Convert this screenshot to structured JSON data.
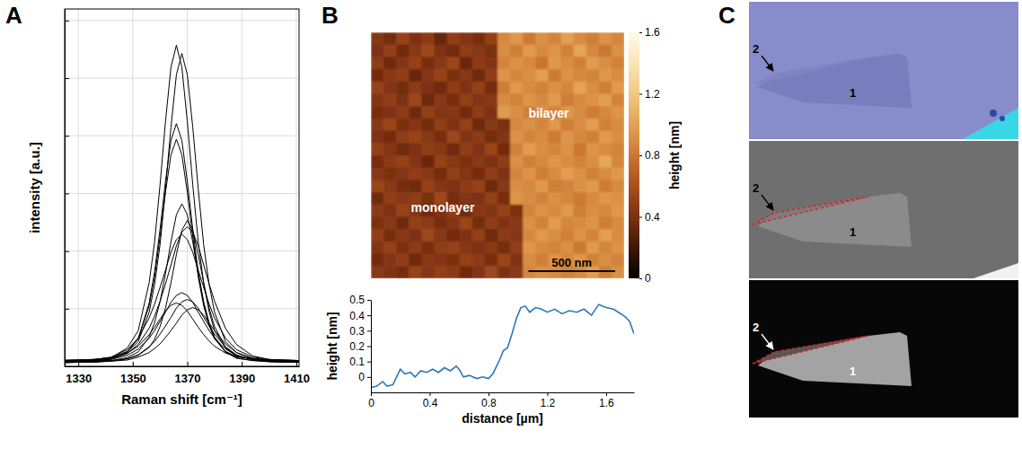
{
  "panel_labels": [
    "A",
    "B",
    "C"
  ],
  "chart_data": [
    {
      "type": "line",
      "xlabel": "Raman shift [cm⁻¹]",
      "ylabel": "intensity [a.u.]",
      "x": [
        1325,
        1330,
        1336,
        1342,
        1348,
        1352,
        1356,
        1358,
        1360,
        1362,
        1364,
        1366,
        1368,
        1370,
        1372,
        1374,
        1376,
        1378,
        1380,
        1384,
        1388,
        1394,
        1400,
        1406,
        1411
      ],
      "series": [
        {
          "values": [
            0.09,
            0.1,
            0.11,
            0.15,
            0.32,
            0.62,
            1.45,
            2.16,
            3.15,
            4.25,
            5.19,
            5.57,
            5.19,
            4.25,
            3.15,
            2.16,
            1.45,
            0.95,
            0.62,
            0.32,
            0.18,
            0.12,
            0.1,
            0.09,
            0.08
          ]
        },
        {
          "values": [
            0.1,
            0.1,
            0.11,
            0.14,
            0.24,
            0.43,
            0.94,
            1.42,
            2.11,
            3.08,
            4.15,
            5.06,
            5.43,
            5.06,
            4.15,
            3.08,
            2.11,
            1.42,
            0.94,
            0.43,
            0.24,
            0.14,
            0.11,
            0.1,
            0.1
          ]
        },
        {
          "values": [
            0.07,
            0.08,
            0.09,
            0.12,
            0.25,
            0.48,
            1.1,
            1.64,
            2.38,
            3.21,
            3.92,
            4.21,
            3.92,
            3.21,
            2.38,
            1.64,
            1.1,
            0.72,
            0.48,
            0.25,
            0.14,
            0.1,
            0.08,
            0.07,
            0.07
          ]
        },
        {
          "values": [
            0.1,
            0.11,
            0.12,
            0.15,
            0.26,
            0.48,
            1.05,
            1.55,
            2.25,
            3.02,
            3.67,
            3.94,
            3.67,
            3.02,
            2.25,
            1.55,
            1.05,
            0.71,
            0.48,
            0.26,
            0.17,
            0.13,
            0.11,
            0.1,
            0.1
          ]
        },
        {
          "values": [
            0.08,
            0.08,
            0.09,
            0.1,
            0.15,
            0.25,
            0.51,
            0.76,
            1.12,
            1.61,
            2.16,
            2.63,
            2.82,
            2.63,
            2.16,
            1.61,
            1.12,
            0.76,
            0.51,
            0.25,
            0.15,
            0.1,
            0.09,
            0.08,
            0.08
          ]
        },
        {
          "values": [
            0.08,
            0.09,
            0.09,
            0.1,
            0.13,
            0.19,
            0.33,
            0.47,
            0.69,
            1.01,
            1.45,
            1.94,
            2.36,
            2.53,
            2.36,
            1.94,
            1.45,
            1.01,
            0.69,
            0.33,
            0.19,
            0.12,
            0.1,
            0.09,
            0.09
          ]
        },
        {
          "values": [
            0.08,
            0.09,
            0.1,
            0.13,
            0.22,
            0.38,
            0.66,
            0.87,
            1.13,
            1.43,
            1.76,
            2.09,
            2.33,
            2.42,
            2.33,
            2.09,
            1.76,
            1.43,
            1.13,
            0.66,
            0.38,
            0.18,
            0.12,
            0.1,
            0.09
          ]
        },
        {
          "values": [
            0.1,
            0.11,
            0.12,
            0.16,
            0.29,
            0.49,
            0.84,
            1.08,
            1.37,
            1.67,
            1.98,
            2.2,
            2.29,
            2.2,
            1.98,
            1.67,
            1.37,
            1.08,
            0.84,
            0.49,
            0.29,
            0.16,
            0.12,
            0.11,
            0.1
          ]
        },
        {
          "values": [
            0.09,
            0.09,
            0.1,
            0.12,
            0.19,
            0.3,
            0.49,
            0.62,
            0.78,
            0.94,
            1.11,
            1.23,
            1.28,
            1.23,
            1.11,
            0.94,
            0.78,
            0.62,
            0.49,
            0.3,
            0.19,
            0.12,
            0.1,
            0.09,
            0.09
          ]
        },
        {
          "values": [
            0.06,
            0.07,
            0.07,
            0.09,
            0.13,
            0.2,
            0.34,
            0.43,
            0.56,
            0.7,
            0.85,
            1.01,
            1.12,
            1.16,
            1.12,
            1.01,
            0.85,
            0.7,
            0.56,
            0.34,
            0.2,
            0.11,
            0.08,
            0.07,
            0.07
          ]
        },
        {
          "values": [
            0.11,
            0.11,
            0.12,
            0.15,
            0.23,
            0.35,
            0.55,
            0.68,
            0.82,
            0.96,
            1.06,
            1.1,
            1.06,
            0.96,
            0.82,
            0.68,
            0.55,
            0.44,
            0.35,
            0.23,
            0.17,
            0.13,
            0.11,
            0.11,
            0.1
          ]
        },
        {
          "values": [
            0.07,
            0.08,
            0.08,
            0.09,
            0.11,
            0.16,
            0.24,
            0.31,
            0.39,
            0.5,
            0.62,
            0.75,
            0.89,
            0.98,
            1.02,
            0.98,
            0.89,
            0.75,
            0.62,
            0.39,
            0.24,
            0.13,
            0.09,
            0.08,
            0.08
          ]
        }
      ],
      "color": "#000000",
      "xlim": [
        1325,
        1411
      ],
      "ylim": [
        0,
        6.2
      ],
      "xticks": [
        1330,
        1350,
        1370,
        1390,
        1410
      ],
      "yticks": [
        0,
        1,
        2,
        3,
        4,
        5,
        6
      ],
      "grid": true,
      "tick_labels": "x"
    },
    {
      "type": "heatmap",
      "cells": [
        [
          0.45,
          0.38,
          0.52,
          0.41,
          0.47,
          0.33,
          0.49,
          0.44,
          0.39,
          0.5,
          0.88,
          0.95,
          0.81,
          0.92,
          0.86,
          0.99,
          0.9,
          0.84,
          0.93,
          0.87
        ],
        [
          0.41,
          0.5,
          0.36,
          0.46,
          0.55,
          0.42,
          0.37,
          0.48,
          0.45,
          0.4,
          0.91,
          0.83,
          0.97,
          0.89,
          0.94,
          0.85,
          1.02,
          0.88,
          0.8,
          0.92
        ],
        [
          0.48,
          0.35,
          0.44,
          0.51,
          0.39,
          0.46,
          0.53,
          0.34,
          0.47,
          0.43,
          0.86,
          0.93,
          0.88,
          0.79,
          0.96,
          0.9,
          0.84,
          0.98,
          0.91,
          0.85
        ],
        [
          0.37,
          0.46,
          0.49,
          0.33,
          0.44,
          0.52,
          0.4,
          0.45,
          0.36,
          0.49,
          0.94,
          0.87,
          0.91,
          0.99,
          0.82,
          0.93,
          0.88,
          0.86,
          0.95,
          0.9
        ],
        [
          0.52,
          0.43,
          0.38,
          0.47,
          0.41,
          0.36,
          0.48,
          0.42,
          0.51,
          0.38,
          0.83,
          0.96,
          0.89,
          0.85,
          0.92,
          0.87,
          1.01,
          0.91,
          0.84,
          0.97
        ],
        [
          0.44,
          0.49,
          0.41,
          0.55,
          0.35,
          0.45,
          0.39,
          0.5,
          0.43,
          0.46,
          0.9,
          0.85,
          0.94,
          0.88,
          0.97,
          0.83,
          0.89,
          0.93,
          0.99,
          0.86
        ],
        [
          0.39,
          0.42,
          0.47,
          0.36,
          0.5,
          0.43,
          0.46,
          0.37,
          0.48,
          0.41,
          0.97,
          0.91,
          0.84,
          0.93,
          0.86,
          0.95,
          0.9,
          0.82,
          0.88,
          0.94
        ],
        [
          0.46,
          0.53,
          0.4,
          0.44,
          0.38,
          0.49,
          0.42,
          0.51,
          0.35,
          0.45,
          0.4,
          0.89,
          0.92,
          0.87,
          0.96,
          0.84,
          0.91,
          0.98,
          0.85,
          0.9
        ],
        [
          0.42,
          0.37,
          0.48,
          0.52,
          0.45,
          0.39,
          0.55,
          0.43,
          0.47,
          0.38,
          0.44,
          0.93,
          0.86,
          0.9,
          0.82,
          0.95,
          0.88,
          0.84,
          0.97,
          0.91
        ],
        [
          0.5,
          0.44,
          0.35,
          0.41,
          0.48,
          0.46,
          0.36,
          0.49,
          0.42,
          0.53,
          0.37,
          0.85,
          0.98,
          0.91,
          0.87,
          0.93,
          0.8,
          0.94,
          0.89,
          0.86
        ],
        [
          0.38,
          0.47,
          0.51,
          0.43,
          0.34,
          0.52,
          0.45,
          0.4,
          0.46,
          0.41,
          0.48,
          0.92,
          0.84,
          0.88,
          0.95,
          0.9,
          0.86,
          0.91,
          1.03,
          0.87
        ],
        [
          0.45,
          0.4,
          0.43,
          0.49,
          0.46,
          0.38,
          0.5,
          0.44,
          0.37,
          0.48,
          0.42,
          0.87,
          0.94,
          0.83,
          0.89,
          0.99,
          0.92,
          0.85,
          0.9,
          0.96
        ],
        [
          0.53,
          0.46,
          0.39,
          0.36,
          0.51,
          0.44,
          0.41,
          0.47,
          0.52,
          0.35,
          0.45,
          0.91,
          0.88,
          0.96,
          0.84,
          0.86,
          0.93,
          0.97,
          0.82,
          0.89
        ],
        [
          0.36,
          0.49,
          0.45,
          0.48,
          0.4,
          0.55,
          0.38,
          0.43,
          0.41,
          0.5,
          0.39,
          0.94,
          0.9,
          0.85,
          0.92,
          0.88,
          0.81,
          0.89,
          0.95,
          0.93
        ],
        [
          0.47,
          0.41,
          0.52,
          0.44,
          0.37,
          0.42,
          0.49,
          0.36,
          0.45,
          0.43,
          0.51,
          0.4,
          0.86,
          0.93,
          0.89,
          0.97,
          0.84,
          0.91,
          0.88,
          0.95
        ],
        [
          0.4,
          0.45,
          0.36,
          0.5,
          0.47,
          0.39,
          0.44,
          0.53,
          0.38,
          0.48,
          0.42,
          0.46,
          0.92,
          0.85,
          0.98,
          0.87,
          0.9,
          0.94,
          0.83,
          0.89
        ],
        [
          0.49,
          0.38,
          0.46,
          0.41,
          0.54,
          0.45,
          0.37,
          0.42,
          0.5,
          0.36,
          0.47,
          0.44,
          0.88,
          0.96,
          0.91,
          0.84,
          0.93,
          0.86,
          0.99,
          0.9
        ],
        [
          0.43,
          0.51,
          0.4,
          0.47,
          0.39,
          0.48,
          0.52,
          0.45,
          0.41,
          0.46,
          0.38,
          0.49,
          0.95,
          0.89,
          0.86,
          0.92,
          0.81,
          0.97,
          0.87,
          0.93
        ],
        [
          0.37,
          0.44,
          0.49,
          0.35,
          0.46,
          0.43,
          0.4,
          0.51,
          0.47,
          0.39,
          0.53,
          0.42,
          0.9,
          0.84,
          0.94,
          0.88,
          0.96,
          0.85,
          0.91,
          0.86
        ],
        [
          0.46,
          0.42,
          0.38,
          0.52,
          0.44,
          0.5,
          0.47,
          0.36,
          0.43,
          0.54,
          0.41,
          0.45,
          0.87,
          0.93,
          0.9,
          0.85,
          0.89,
          0.98,
          0.84,
          0.92
        ]
      ],
      "extent": [
        0,
        1460
      ],
      "color_range": [
        0,
        1.6
      ],
      "color_ticks": [
        0,
        0.4,
        0.8,
        1.2,
        1.6
      ],
      "color_label": "height [nm]",
      "annotations": [
        "monolayer",
        "bilayer"
      ],
      "scale_bar": {
        "label": "500 nm",
        "length": 500
      },
      "tick_labels": false
    },
    {
      "type": "line",
      "xlabel": "distance [µm]",
      "ylabel": "height [nm]",
      "x": [
        0,
        0.04,
        0.08,
        0.11,
        0.15,
        0.2,
        0.23,
        0.27,
        0.3,
        0.34,
        0.38,
        0.42,
        0.46,
        0.5,
        0.54,
        0.58,
        0.6,
        0.63,
        0.67,
        0.72,
        0.76,
        0.8,
        0.83,
        0.86,
        0.88,
        0.9,
        0.93,
        0.96,
        0.99,
        1.02,
        1.05,
        1.08,
        1.12,
        1.16,
        1.2,
        1.25,
        1.3,
        1.35,
        1.4,
        1.45,
        1.5,
        1.55,
        1.6,
        1.65,
        1.7,
        1.73,
        1.76,
        1.79
      ],
      "values": [
        -0.07,
        -0.06,
        -0.03,
        -0.06,
        -0.05,
        0.05,
        0.02,
        0.03,
        0,
        0.04,
        0.03,
        0.05,
        0.03,
        0.06,
        0.04,
        0.07,
        0.05,
        0,
        0.01,
        -0.01,
        0,
        -0.01,
        0.02,
        0.08,
        0.12,
        0.17,
        0.19,
        0.28,
        0.38,
        0.45,
        0.46,
        0.42,
        0.45,
        0.44,
        0.42,
        0.44,
        0.41,
        0.43,
        0.42,
        0.44,
        0.4,
        0.47,
        0.45,
        0.44,
        0.41,
        0.39,
        0.36,
        0.28
      ],
      "color": "#2a78b8",
      "xlim": [
        0,
        1.79
      ],
      "ylim": [
        -0.1,
        0.5
      ],
      "xticks": [
        0,
        0.4,
        0.8,
        1.2,
        1.6
      ],
      "yticks": [
        0,
        0.1,
        0.2,
        0.3,
        0.4,
        0.5
      ]
    }
  ],
  "micrographs": [
    {
      "labels": [
        "2",
        "1"
      ]
    },
    {
      "labels": [
        "2",
        "1"
      ]
    },
    {
      "labels": [
        "2",
        "1"
      ]
    }
  ]
}
